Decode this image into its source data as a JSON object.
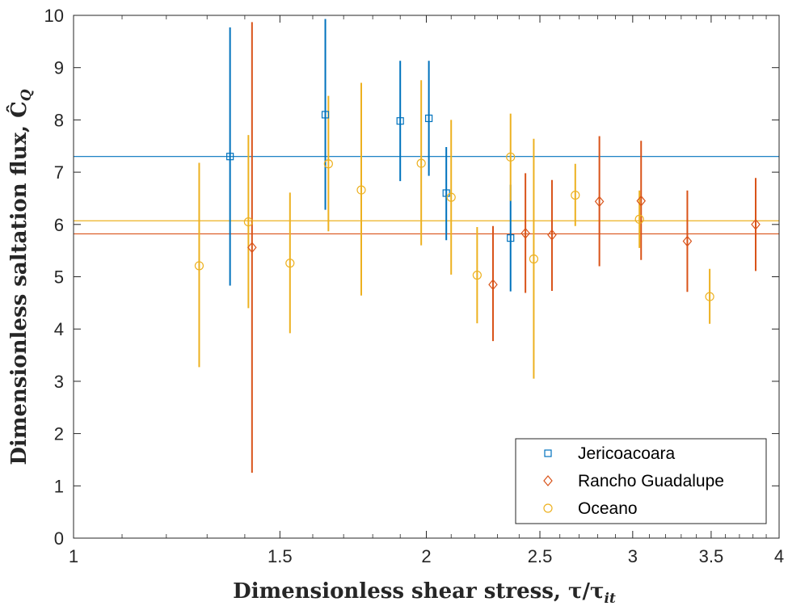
{
  "chart_data": {
    "type": "scatter",
    "xlabel": "Dimensionless shear stress, τ/τ",
    "xlabel_sub": "it",
    "ylabel": "Dimensionless saltation flux, Ĉ",
    "ylabel_sub": "Q",
    "xscale": "log",
    "xlim": [
      1,
      4
    ],
    "ylim": [
      0,
      10
    ],
    "xticks": [
      1,
      1.5,
      2,
      2.5,
      3,
      3.5,
      4
    ],
    "xtick_labels": [
      "1",
      "1.5",
      "2",
      "2.5",
      "3",
      "3.5",
      "4"
    ],
    "yticks": [
      0,
      1,
      2,
      3,
      4,
      5,
      6,
      7,
      8,
      9,
      10
    ],
    "ytick_labels": [
      "0",
      "1",
      "2",
      "3",
      "4",
      "5",
      "6",
      "7",
      "8",
      "9",
      "10"
    ],
    "grid": false,
    "legend_position": "bottom-right",
    "series": [
      {
        "name": "Jericoacoara",
        "marker": "square",
        "color": "#0072BD",
        "mean": 7.3,
        "points": [
          {
            "x": 1.36,
            "y": 7.3,
            "low": 4.83,
            "high": 9.77
          },
          {
            "x": 1.64,
            "y": 8.1,
            "low": 6.28,
            "high": 9.93
          },
          {
            "x": 1.9,
            "y": 7.98,
            "low": 6.83,
            "high": 9.13
          },
          {
            "x": 2.01,
            "y": 8.03,
            "low": 6.93,
            "high": 9.13
          },
          {
            "x": 2.08,
            "y": 6.6,
            "low": 5.7,
            "high": 7.48
          },
          {
            "x": 2.36,
            "y": 5.74,
            "low": 4.72,
            "high": 6.76
          }
        ]
      },
      {
        "name": "Rancho Guadalupe",
        "marker": "diamond",
        "color": "#D95319",
        "mean": 5.82,
        "points": [
          {
            "x": 1.42,
            "y": 5.56,
            "low": 1.25,
            "high": 9.87
          },
          {
            "x": 2.28,
            "y": 4.85,
            "low": 3.77,
            "high": 5.97
          },
          {
            "x": 2.43,
            "y": 5.83,
            "low": 4.69,
            "high": 6.98
          },
          {
            "x": 2.56,
            "y": 5.8,
            "low": 4.73,
            "high": 6.85
          },
          {
            "x": 2.81,
            "y": 6.44,
            "low": 5.2,
            "high": 7.69
          },
          {
            "x": 3.05,
            "y": 6.45,
            "low": 5.32,
            "high": 7.6
          },
          {
            "x": 3.34,
            "y": 5.68,
            "low": 4.71,
            "high": 6.65
          },
          {
            "x": 3.82,
            "y": 6.0,
            "low": 5.11,
            "high": 6.89
          }
        ]
      },
      {
        "name": "Oceano",
        "marker": "circle",
        "color": "#EDB120",
        "mean": 6.07,
        "points": [
          {
            "x": 1.28,
            "y": 5.21,
            "low": 3.27,
            "high": 7.18
          },
          {
            "x": 1.41,
            "y": 6.05,
            "low": 4.4,
            "high": 7.71
          },
          {
            "x": 1.53,
            "y": 5.26,
            "low": 3.92,
            "high": 6.61
          },
          {
            "x": 1.65,
            "y": 7.16,
            "low": 5.87,
            "high": 8.46
          },
          {
            "x": 1.76,
            "y": 6.66,
            "low": 4.64,
            "high": 8.71
          },
          {
            "x": 1.98,
            "y": 7.17,
            "low": 5.6,
            "high": 8.76
          },
          {
            "x": 2.1,
            "y": 6.52,
            "low": 5.04,
            "high": 8.0
          },
          {
            "x": 2.21,
            "y": 5.03,
            "low": 4.11,
            "high": 5.95
          },
          {
            "x": 2.36,
            "y": 7.29,
            "low": 6.45,
            "high": 8.12
          },
          {
            "x": 2.47,
            "y": 5.34,
            "low": 3.05,
            "high": 7.64
          },
          {
            "x": 2.68,
            "y": 6.56,
            "low": 5.97,
            "high": 7.16
          },
          {
            "x": 3.04,
            "y": 6.1,
            "low": 5.55,
            "high": 6.65
          },
          {
            "x": 3.49,
            "y": 4.62,
            "low": 4.1,
            "high": 5.15
          }
        ]
      }
    ]
  }
}
